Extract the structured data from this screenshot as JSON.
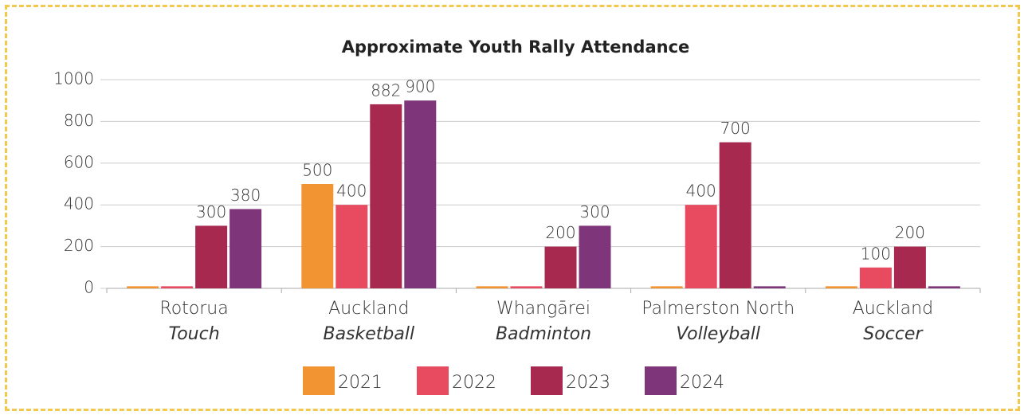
{
  "chart_data": {
    "type": "bar",
    "title": "Approximate Youth Rally Attendance",
    "categories": [
      [
        "Rotorua",
        "Touch"
      ],
      [
        "Auckland",
        "Basketball"
      ],
      [
        "Whangārei",
        "Badminton"
      ],
      [
        "Palmerston North",
        "Volleyball"
      ],
      [
        "Auckland",
        "Soccer"
      ]
    ],
    "series": [
      {
        "name": "2021",
        "color": "#f39433",
        "values": [
          10,
          500,
          10,
          10,
          10
        ],
        "value_labels": [
          null,
          "500",
          null,
          null,
          null
        ]
      },
      {
        "name": "2022",
        "color": "#e84a5f",
        "values": [
          10,
          400,
          10,
          400,
          100
        ],
        "value_labels": [
          null,
          "400",
          null,
          "400",
          "100"
        ]
      },
      {
        "name": "2023",
        "color": "#a8294f",
        "values": [
          300,
          882,
          200,
          700,
          200
        ],
        "value_labels": [
          "300",
          "882",
          "200",
          "700",
          "200"
        ]
      },
      {
        "name": "2024",
        "color": "#7e357a",
        "values": [
          380,
          900,
          300,
          10,
          10
        ],
        "value_labels": [
          "380",
          "900",
          "300",
          null,
          null
        ]
      }
    ],
    "ylim": [
      0,
      1000
    ],
    "yticks": [
      0,
      200,
      400,
      600,
      800,
      1000
    ],
    "grid": true
  }
}
